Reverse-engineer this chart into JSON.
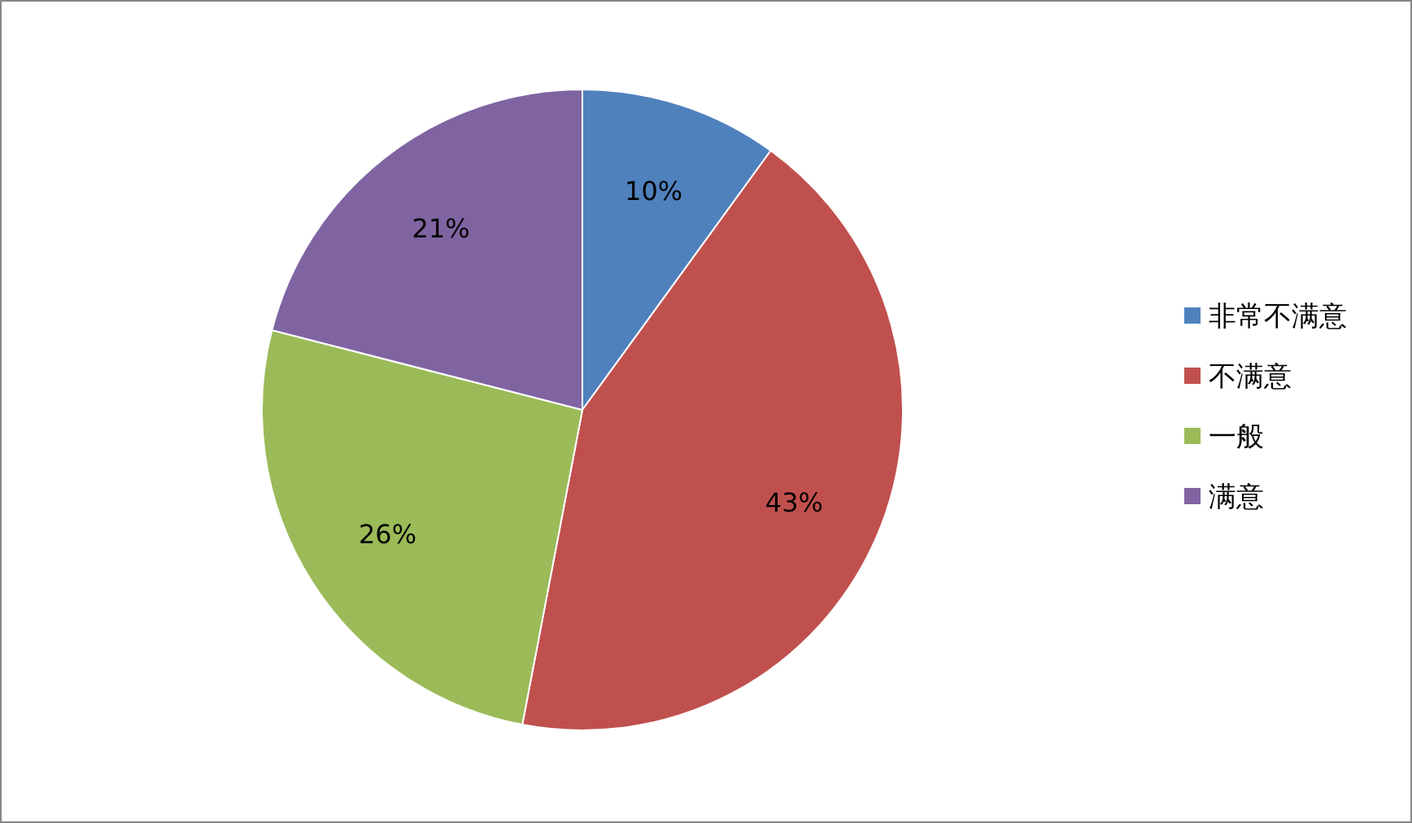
{
  "chart_data": {
    "type": "pie",
    "categories": [
      "非常不满意",
      "不满意",
      "一般",
      "满意"
    ],
    "values": [
      10,
      43,
      26,
      21
    ],
    "colors": [
      "#4f81bd",
      "#c0504d",
      "#9bbb59",
      "#8064a2"
    ],
    "value_labels": [
      "10%",
      "43%",
      "26%",
      "21%"
    ],
    "legend": "right"
  }
}
